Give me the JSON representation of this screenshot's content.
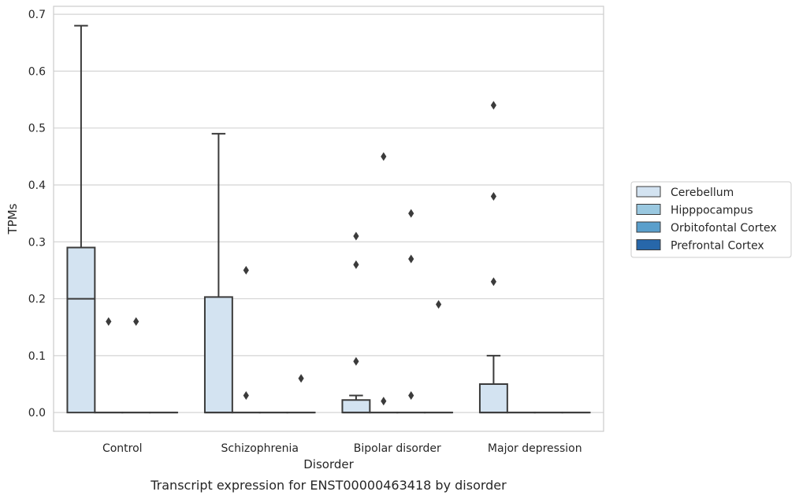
{
  "chart_data": {
    "type": "box",
    "title": "",
    "caption": "Transcript expression for ENST00000463418 by disorder",
    "xlabel": "Disorder",
    "ylabel": "TPMs",
    "ylim": [
      -0.033,
      0.714
    ],
    "yticks": [
      "0.0",
      "0.1",
      "0.2",
      "0.3",
      "0.4",
      "0.5",
      "0.6",
      "0.7"
    ],
    "ytick_values": [
      0,
      0.1,
      0.2,
      0.3,
      0.4,
      0.5,
      0.6,
      0.7
    ],
    "grid": true,
    "legend_position": "right",
    "categories": [
      "Control",
      "Schizophrenia",
      "Bipolar disorder",
      "Major depression"
    ],
    "series": [
      {
        "name": "Cerebellum",
        "color": "#d3e3f1",
        "boxes": [
          {
            "q1": 0,
            "median": 0.2,
            "q3": 0.29,
            "whisker_low": 0,
            "whisker_high": 0.68,
            "outliers": []
          },
          {
            "q1": 0,
            "median": 0,
            "q3": 0.203,
            "whisker_low": 0,
            "whisker_high": 0.49,
            "outliers": []
          },
          {
            "q1": 0,
            "median": 0,
            "q3": 0.022,
            "whisker_low": 0,
            "whisker_high": 0.03,
            "outliers": [
              0.09,
              0.26,
              0.31
            ]
          },
          {
            "q1": 0,
            "median": 0,
            "q3": 0.05,
            "whisker_low": 0,
            "whisker_high": 0.1,
            "outliers": [
              0.23,
              0.38,
              0.54
            ]
          }
        ]
      },
      {
        "name": "Hipppocampus",
        "color": "#9ac8e0",
        "boxes": [
          {
            "q1": 0,
            "median": 0,
            "q3": 0,
            "whisker_low": 0,
            "whisker_high": 0,
            "outliers": [
              0.16
            ]
          },
          {
            "q1": 0,
            "median": 0,
            "q3": 0,
            "whisker_low": 0,
            "whisker_high": 0,
            "outliers": [
              0.03,
              0.25
            ]
          },
          {
            "q1": 0,
            "median": 0,
            "q3": 0,
            "whisker_low": 0,
            "whisker_high": 0,
            "outliers": [
              0.02,
              0.45
            ]
          },
          {
            "q1": 0,
            "median": 0,
            "q3": 0,
            "whisker_low": 0,
            "whisker_high": 0,
            "outliers": []
          }
        ]
      },
      {
        "name": "Orbitofontal Cortex",
        "color": "#5a9fcc",
        "boxes": [
          {
            "q1": 0,
            "median": 0,
            "q3": 0,
            "whisker_low": 0,
            "whisker_high": 0,
            "outliers": [
              0.16
            ]
          },
          {
            "q1": 0,
            "median": 0,
            "q3": 0,
            "whisker_low": 0,
            "whisker_high": 0,
            "outliers": []
          },
          {
            "q1": 0,
            "median": 0,
            "q3": 0,
            "whisker_low": 0,
            "whisker_high": 0,
            "outliers": [
              0.03,
              0.27,
              0.35
            ]
          },
          {
            "q1": 0,
            "median": 0,
            "q3": 0,
            "whisker_low": 0,
            "whisker_high": 0,
            "outliers": []
          }
        ]
      },
      {
        "name": "Prefrontal Cortex",
        "color": "#2767aa",
        "boxes": [
          {
            "q1": 0,
            "median": 0,
            "q3": 0,
            "whisker_low": 0,
            "whisker_high": 0,
            "outliers": []
          },
          {
            "q1": 0,
            "median": 0,
            "q3": 0,
            "whisker_low": 0,
            "whisker_high": 0,
            "outliers": [
              0.06
            ]
          },
          {
            "q1": 0,
            "median": 0,
            "q3": 0,
            "whisker_low": 0,
            "whisker_high": 0,
            "outliers": [
              0.19
            ]
          },
          {
            "q1": 0,
            "median": 0,
            "q3": 0,
            "whisker_low": 0,
            "whisker_high": 0,
            "outliers": []
          }
        ]
      }
    ]
  }
}
